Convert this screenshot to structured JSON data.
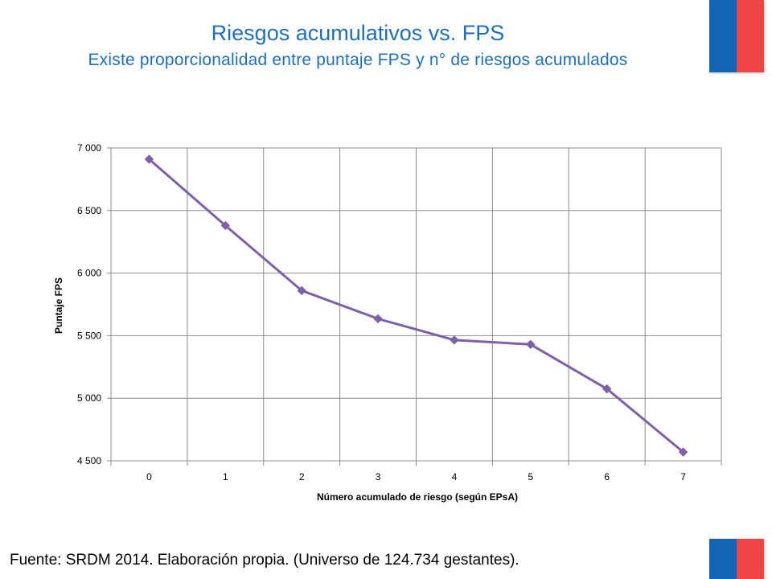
{
  "header": {
    "title": "Riesgos acumulativos vs. FPS",
    "subtitle": "Existe proporcionalidad entre puntaje FPS y n° de riesgos acumulados"
  },
  "footer": {
    "source": "Fuente: SRDM 2014. Elaboración propia. (Universo de 124.734 gestantes)."
  },
  "colors": {
    "title": "#1f6fbf",
    "series": "#7f5fa8",
    "flag_blue": "#1565b7",
    "flag_red": "#ef4444",
    "grid": "#8c8c8c"
  },
  "chart_data": {
    "type": "line",
    "xlabel": "Número acumulado de riesgo (según EPsA)",
    "ylabel": "Puntaje FPS",
    "x": [
      0,
      1,
      2,
      3,
      4,
      5,
      6,
      7
    ],
    "x_tick_labels": [
      "0",
      "1",
      "2",
      "3",
      "4",
      "5",
      "6",
      "7"
    ],
    "y": [
      6910,
      6380,
      5860,
      5635,
      5465,
      5430,
      5075,
      4570
    ],
    "ylim": [
      4500,
      7000
    ],
    "y_ticks": [
      4500,
      5000,
      5500,
      6000,
      6500,
      7000
    ],
    "y_tick_labels": [
      "4 500",
      "5 000",
      "5 500",
      "6 000",
      "6 500",
      "7 000"
    ],
    "grid": true,
    "marker": "diamond",
    "legend": false
  }
}
